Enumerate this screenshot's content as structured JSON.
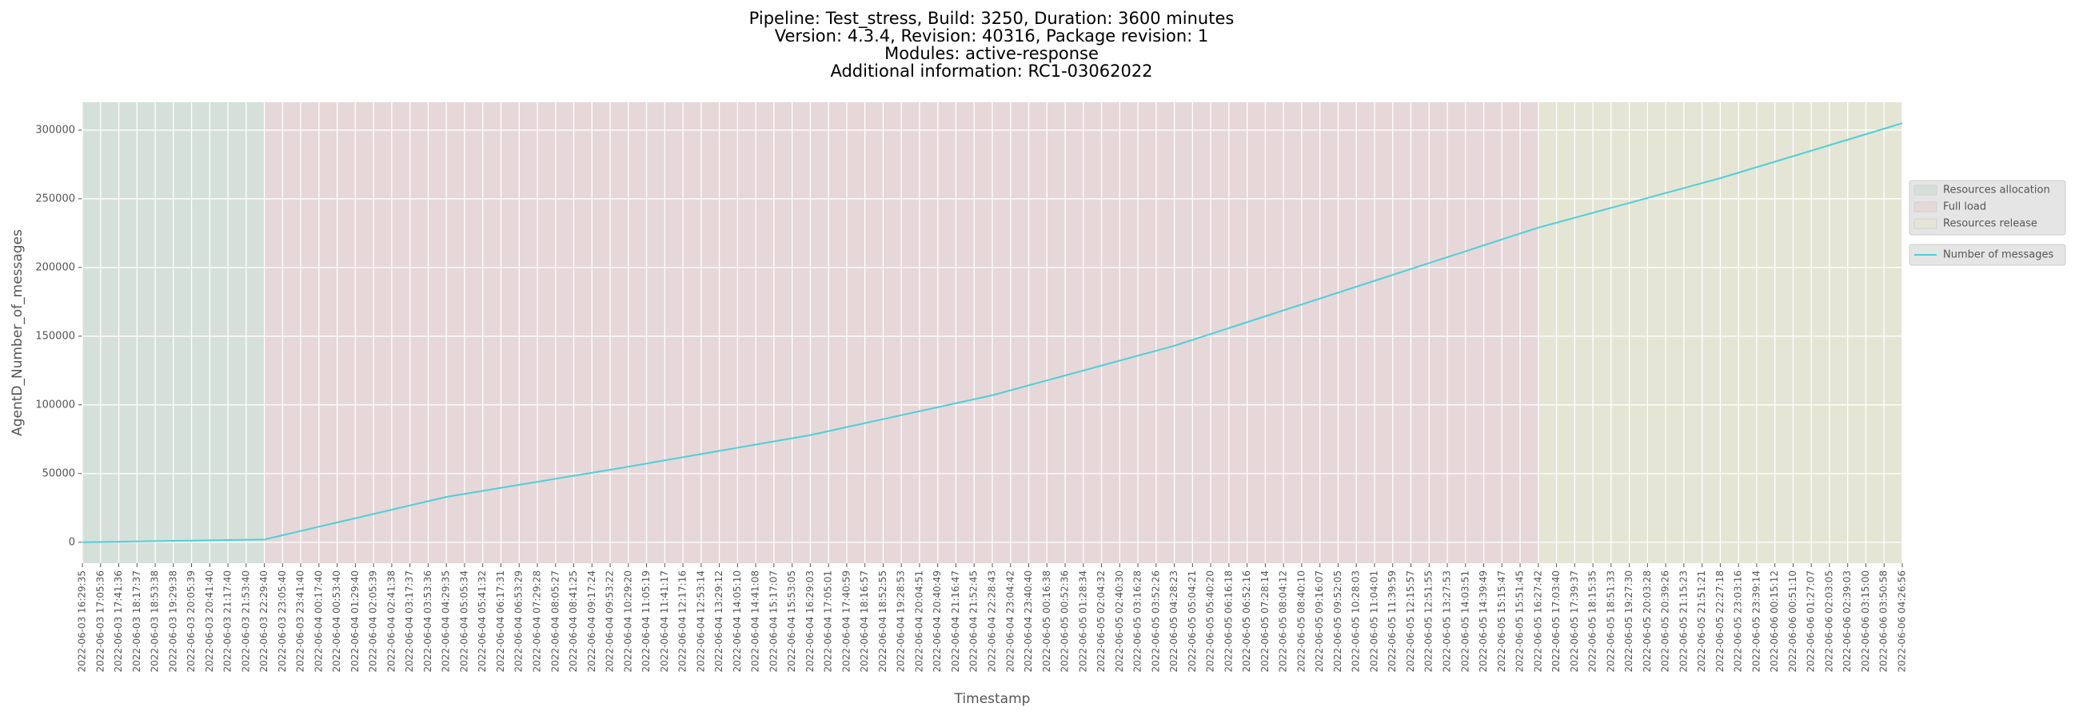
{
  "chart_data": {
    "type": "line",
    "title": [
      "Pipeline: Test_stress, Build: 3250, Duration: 3600 minutes",
      "Version: 4.3.4, Revision: 40316, Package revision: 1",
      "Modules: active-response",
      "Additional information: RC1-03062022"
    ],
    "xlabel": "Timestamp",
    "ylabel": "AgentD_Number_of_messages",
    "categories": [
      "2022-06-03 16:29:35",
      "2022-06-03 17:05:36",
      "2022-06-03 17:41:36",
      "2022-06-03 18:17:37",
      "2022-06-03 18:53:38",
      "2022-06-03 19:29:38",
      "2022-06-03 20:05:39",
      "2022-06-03 20:41:40",
      "2022-06-03 21:17:40",
      "2022-06-03 21:53:40",
      "2022-06-03 22:29:40",
      "2022-06-03 23:05:40",
      "2022-06-03 23:41:40",
      "2022-06-04 00:17:40",
      "2022-06-04 00:53:40",
      "2022-06-04 01:29:40",
      "2022-06-04 02:05:39",
      "2022-06-04 02:41:38",
      "2022-06-04 03:17:37",
      "2022-06-04 03:53:36",
      "2022-06-04 04:29:35",
      "2022-06-04 05:05:34",
      "2022-06-04 05:41:32",
      "2022-06-04 06:17:31",
      "2022-06-04 06:53:29",
      "2022-06-04 07:29:28",
      "2022-06-04 08:05:27",
      "2022-06-04 08:41:25",
      "2022-06-04 09:17:24",
      "2022-06-04 09:53:22",
      "2022-06-04 10:29:20",
      "2022-06-04 11:05:19",
      "2022-06-04 11:41:17",
      "2022-06-04 12:17:16",
      "2022-06-04 12:53:14",
      "2022-06-04 13:29:12",
      "2022-06-04 14:05:10",
      "2022-06-04 14:41:08",
      "2022-06-04 15:17:07",
      "2022-06-04 15:53:05",
      "2022-06-04 16:29:03",
      "2022-06-04 17:05:01",
      "2022-06-04 17:40:59",
      "2022-06-04 18:16:57",
      "2022-06-04 18:52:55",
      "2022-06-04 19:28:53",
      "2022-06-04 20:04:51",
      "2022-06-04 20:40:49",
      "2022-06-04 21:16:47",
      "2022-06-04 21:52:45",
      "2022-06-04 22:28:43",
      "2022-06-04 23:04:42",
      "2022-06-04 23:40:40",
      "2022-06-05 00:16:38",
      "2022-06-05 00:52:36",
      "2022-06-05 01:28:34",
      "2022-06-05 02:04:32",
      "2022-06-05 02:40:30",
      "2022-06-05 03:16:28",
      "2022-06-05 03:52:26",
      "2022-06-05 04:28:23",
      "2022-06-05 05:04:21",
      "2022-06-05 05:40:20",
      "2022-06-05 06:16:18",
      "2022-06-05 06:52:16",
      "2022-06-05 07:28:14",
      "2022-06-05 08:04:12",
      "2022-06-05 08:40:10",
      "2022-06-05 09:16:07",
      "2022-06-05 09:52:05",
      "2022-06-05 10:28:03",
      "2022-06-05 11:04:01",
      "2022-06-05 11:39:59",
      "2022-06-05 12:15:57",
      "2022-06-05 12:51:55",
      "2022-06-05 13:27:53",
      "2022-06-05 14:03:51",
      "2022-06-05 14:39:49",
      "2022-06-05 15:15:47",
      "2022-06-05 15:51:45",
      "2022-06-05 16:27:42",
      "2022-06-05 17:03:40",
      "2022-06-05 17:39:37",
      "2022-06-05 18:15:35",
      "2022-06-05 18:51:33",
      "2022-06-05 19:27:30",
      "2022-06-05 20:03:28",
      "2022-06-05 20:39:26",
      "2022-06-05 21:15:23",
      "2022-06-05 21:51:21",
      "2022-06-05 22:27:18",
      "2022-06-05 23:03:16",
      "2022-06-05 23:39:14",
      "2022-06-06 00:15:12",
      "2022-06-06 00:51:10",
      "2022-06-06 01:27:07",
      "2022-06-06 02:03:05",
      "2022-06-06 02:39:03",
      "2022-06-06 03:15:00",
      "2022-06-06 03:50:58",
      "2022-06-06 04:26:56"
    ],
    "series": [
      {
        "name": "Number of messages",
        "color": "#4dd0d6",
        "values": [
          0,
          200,
          400,
          600,
          800,
          1000,
          1200,
          1400,
          1600,
          1800,
          2000,
          5100,
          8200,
          11300,
          14400,
          17500,
          20600,
          23700,
          26800,
          29900,
          33000,
          35200,
          37400,
          39600,
          41800,
          44000,
          46200,
          48400,
          50600,
          52800,
          55000,
          57300,
          59600,
          61900,
          64200,
          66500,
          68800,
          71100,
          73400,
          75700,
          78000,
          80900,
          83800,
          86700,
          89600,
          92500,
          95400,
          98300,
          101200,
          104100,
          107000,
          110600,
          114200,
          117800,
          121400,
          125000,
          128600,
          132200,
          135800,
          139400,
          143000,
          147300,
          151600,
          155900,
          160200,
          164500,
          168800,
          173100,
          177400,
          181700,
          186000,
          190300,
          194600,
          198900,
          203200,
          207500,
          211800,
          216100,
          220400,
          224700,
          229000,
          232600,
          236200,
          239800,
          243400,
          247000,
          250600,
          254200,
          257800,
          261400,
          265000,
          269000,
          273000,
          277000,
          281000,
          285000,
          289000,
          293000,
          297000,
          301000,
          305000
        ]
      }
    ],
    "spans": [
      {
        "name": "Resources allocation",
        "color": "#d5e0da",
        "start": 0,
        "end": 10
      },
      {
        "name": "Full load",
        "color": "#e6d7d9",
        "start": 10,
        "end": 80
      },
      {
        "name": "Resources release",
        "color": "#e5e5d5",
        "start": 80,
        "end": 100
      }
    ],
    "ylim": [
      -15250,
      320250
    ],
    "yticks": [
      0,
      50000,
      100000,
      150000,
      200000,
      250000,
      300000
    ],
    "grid": true,
    "legend": "right"
  }
}
